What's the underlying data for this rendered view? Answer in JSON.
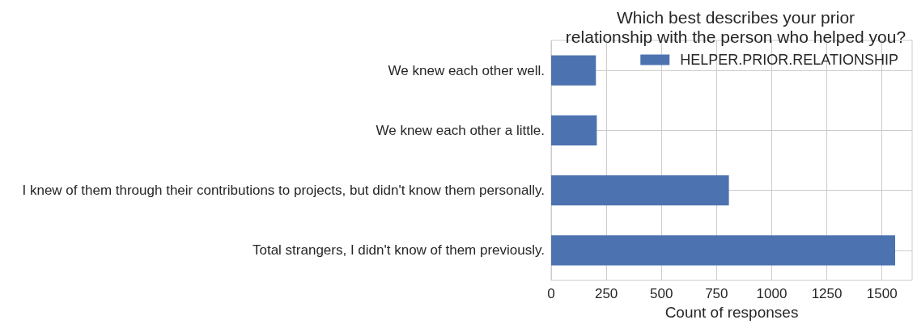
{
  "chart_data": {
    "type": "bar",
    "orientation": "horizontal",
    "title": "Which best describes your prior\nrelationship with the person who helped you?",
    "xlabel": "Count of responses",
    "categories": [
      "We knew each other well.",
      "We knew each other a little.",
      "I knew of them through their contributions to projects, but didn't know them personally.",
      "Total strangers, I didn't know of them previously."
    ],
    "series": [
      {
        "name": "HELPER.PRIOR.RELATIONSHIP",
        "color": "#4c72b0",
        "values": [
          203,
          207,
          806,
          1560
        ]
      }
    ],
    "xlim": [
      0,
      1637
    ],
    "xticks": [
      0,
      250,
      500,
      750,
      1000,
      1250,
      1500
    ],
    "grid": true,
    "legend": "top right"
  }
}
